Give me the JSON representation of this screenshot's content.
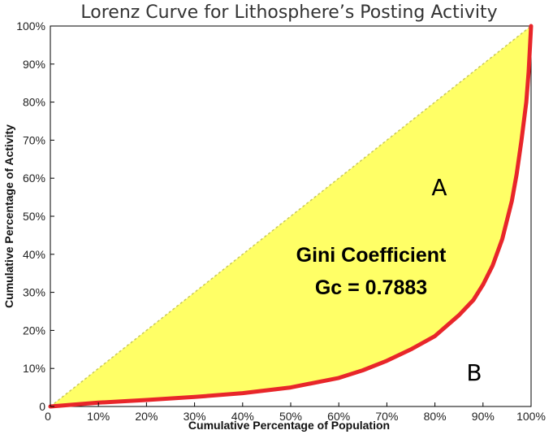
{
  "chart_data": {
    "type": "area",
    "title": "Lorenz Curve for Lithosphere’s Posting Activity",
    "xlabel": "Cumulative Percentage of Population",
    "ylabel": "Cumulative Percentage of Activity",
    "xlim": [
      0,
      100
    ],
    "ylim": [
      0,
      100
    ],
    "x_ticks": [
      "0",
      "10%",
      "20%",
      "30%",
      "40%",
      "50%",
      "60%",
      "70%",
      "80%",
      "90%",
      "100%"
    ],
    "y_ticks": [
      "0",
      "10%",
      "20%",
      "30%",
      "40%",
      "50%",
      "60%",
      "70%",
      "80%",
      "90%",
      "100%"
    ],
    "grid": false,
    "series": [
      {
        "x": [
          0,
          10,
          20,
          30,
          40,
          50,
          60,
          65,
          70,
          75,
          80,
          85,
          88,
          90,
          92,
          94,
          96,
          97,
          98,
          99,
          99.5,
          100
        ],
        "y": [
          0,
          1,
          1.7,
          2.5,
          3.5,
          5,
          7.5,
          9.5,
          12,
          15,
          18.5,
          24,
          28,
          32,
          37,
          44,
          54,
          61,
          70,
          80,
          88,
          100
        ],
        "color": "#e8262a"
      }
    ],
    "equality_line": {
      "x": [
        0,
        100
      ],
      "y": [
        0,
        100
      ]
    },
    "fill_color": "#ffff66",
    "annotations": {
      "region_a": "A",
      "region_b": "B",
      "gini_label": "Gini Coefficient",
      "gini_value": "Gc = 0.7883"
    }
  }
}
